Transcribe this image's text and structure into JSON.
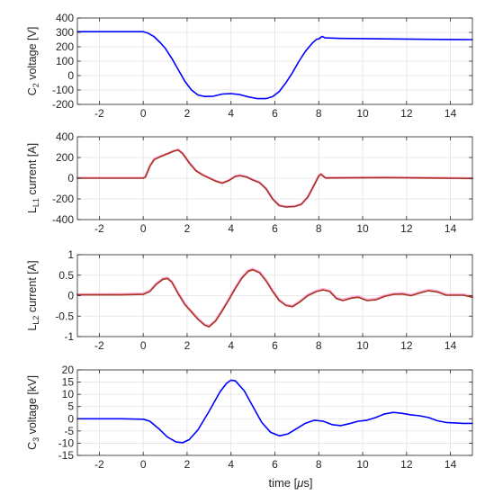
{
  "figure": {
    "xlabel_prefix": "time [",
    "xlabel_mu": "μ",
    "xlabel_suffix": "s]"
  },
  "chart_data": [
    {
      "type": "line",
      "ylabel": {
        "pre": "C",
        "sub": "2",
        "post": " voltage [V]"
      },
      "xlim": [
        -3,
        15
      ],
      "ylim": [
        -200,
        400
      ],
      "xticks": [
        -2,
        0,
        2,
        4,
        6,
        8,
        10,
        12,
        14
      ],
      "yticks": [
        -200,
        -100,
        0,
        100,
        200,
        300,
        400
      ],
      "grid": true,
      "series": [
        {
          "color": "#0000ff",
          "points": [
            [
              -3,
              305
            ],
            [
              -1.5,
              305
            ],
            [
              0,
              305
            ],
            [
              0.2,
              296
            ],
            [
              0.5,
              270
            ],
            [
              0.8,
              225
            ],
            [
              1,
              190
            ],
            [
              1.3,
              120
            ],
            [
              1.6,
              40
            ],
            [
              1.9,
              -40
            ],
            [
              2.2,
              -100
            ],
            [
              2.5,
              -135
            ],
            [
              2.8,
              -145
            ],
            [
              3.2,
              -143
            ],
            [
              3.6,
              -128
            ],
            [
              4,
              -125
            ],
            [
              4.4,
              -132
            ],
            [
              4.8,
              -148
            ],
            [
              5.2,
              -160
            ],
            [
              5.6,
              -160
            ],
            [
              5.9,
              -145
            ],
            [
              6.2,
              -110
            ],
            [
              6.5,
              -50
            ],
            [
              6.8,
              20
            ],
            [
              7.1,
              100
            ],
            [
              7.4,
              170
            ],
            [
              7.7,
              225
            ],
            [
              7.9,
              252
            ],
            [
              8,
              255
            ],
            [
              8.15,
              272
            ],
            [
              8.3,
              262
            ],
            [
              9,
              258
            ],
            [
              11,
              255
            ],
            [
              13,
              252
            ],
            [
              15,
              250
            ]
          ]
        }
      ]
    },
    {
      "type": "line",
      "ylabel": {
        "pre": "L",
        "sub": "L1",
        "post": " current [A]"
      },
      "xlim": [
        -3,
        15
      ],
      "ylim": [
        -400,
        400
      ],
      "xticks": [
        -2,
        0,
        2,
        4,
        6,
        8,
        10,
        12,
        14
      ],
      "yticks": [
        -400,
        -200,
        0,
        200,
        400
      ],
      "grid": true,
      "series": [
        {
          "color": "#ff55aa",
          "points": [
            [
              -3,
              4
            ],
            [
              -1,
              4
            ],
            [
              0,
              4
            ],
            [
              0.1,
              15
            ],
            [
              0.3,
              120
            ],
            [
              0.5,
              185
            ],
            [
              0.8,
              215
            ],
            [
              1.1,
              240
            ],
            [
              1.4,
              265
            ],
            [
              1.6,
              275
            ],
            [
              1.8,
              240
            ],
            [
              2.1,
              150
            ],
            [
              2.4,
              75
            ],
            [
              2.7,
              35
            ],
            [
              3,
              5
            ],
            [
              3.3,
              -25
            ],
            [
              3.6,
              -45
            ],
            [
              3.9,
              -20
            ],
            [
              4.2,
              20
            ],
            [
              4.4,
              28
            ],
            [
              4.7,
              15
            ],
            [
              5,
              -15
            ],
            [
              5.3,
              -40
            ],
            [
              5.6,
              -100
            ],
            [
              5.9,
              -200
            ],
            [
              6.2,
              -262
            ],
            [
              6.5,
              -275
            ],
            [
              6.9,
              -270
            ],
            [
              7.2,
              -250
            ],
            [
              7.5,
              -180
            ],
            [
              7.8,
              -60
            ],
            [
              8,
              25
            ],
            [
              8.1,
              42
            ],
            [
              8.3,
              5
            ],
            [
              9,
              6
            ],
            [
              11,
              8
            ],
            [
              13,
              5
            ],
            [
              15,
              0
            ]
          ]
        },
        {
          "color": "#a83222",
          "points": [
            [
              -3,
              0
            ],
            [
              -1,
              0
            ],
            [
              0,
              0
            ],
            [
              0.1,
              10
            ],
            [
              0.3,
              115
            ],
            [
              0.5,
              180
            ],
            [
              0.8,
              210
            ],
            [
              1.1,
              235
            ],
            [
              1.4,
              262
            ],
            [
              1.6,
              272
            ],
            [
              1.8,
              236
            ],
            [
              2.1,
              147
            ],
            [
              2.4,
              72
            ],
            [
              2.7,
              32
            ],
            [
              3,
              2
            ],
            [
              3.3,
              -28
            ],
            [
              3.6,
              -48
            ],
            [
              3.9,
              -23
            ],
            [
              4.2,
              17
            ],
            [
              4.4,
              25
            ],
            [
              4.7,
              12
            ],
            [
              5,
              -18
            ],
            [
              5.3,
              -43
            ],
            [
              5.6,
              -103
            ],
            [
              5.9,
              -203
            ],
            [
              6.2,
              -265
            ],
            [
              6.5,
              -278
            ],
            [
              6.9,
              -273
            ],
            [
              7.2,
              -253
            ],
            [
              7.5,
              -183
            ],
            [
              7.8,
              -63
            ],
            [
              8,
              22
            ],
            [
              8.1,
              38
            ],
            [
              8.3,
              2
            ],
            [
              9,
              3
            ],
            [
              11,
              5
            ],
            [
              13,
              2
            ],
            [
              15,
              -3
            ]
          ]
        }
      ]
    },
    {
      "type": "line",
      "ylabel": {
        "pre": "L",
        "sub": "L2",
        "post": " current [A]"
      },
      "xlim": [
        -3,
        15
      ],
      "ylim": [
        -1,
        1
      ],
      "xticks": [
        -2,
        0,
        2,
        4,
        6,
        8,
        10,
        12,
        14
      ],
      "yticks": [
        -1,
        -0.5,
        0,
        0.5,
        1
      ],
      "grid": true,
      "series": [
        {
          "color": "#ff55aa",
          "points": [
            [
              -3,
              0.03
            ],
            [
              -1,
              0.04
            ],
            [
              0,
              0.05
            ],
            [
              0.3,
              0.12
            ],
            [
              0.6,
              0.3
            ],
            [
              0.9,
              0.42
            ],
            [
              1.1,
              0.44
            ],
            [
              1.3,
              0.35
            ],
            [
              1.6,
              0.06
            ],
            [
              1.9,
              -0.2
            ],
            [
              2.2,
              -0.38
            ],
            [
              2.5,
              -0.56
            ],
            [
              2.8,
              -0.7
            ],
            [
              3,
              -0.74
            ],
            [
              3.3,
              -0.6
            ],
            [
              3.6,
              -0.35
            ],
            [
              3.9,
              -0.08
            ],
            [
              4.2,
              0.2
            ],
            [
              4.5,
              0.45
            ],
            [
              4.8,
              0.62
            ],
            [
              5,
              0.65
            ],
            [
              5.3,
              0.58
            ],
            [
              5.6,
              0.38
            ],
            [
              5.9,
              0.12
            ],
            [
              6.2,
              -0.1
            ],
            [
              6.5,
              -0.22
            ],
            [
              6.8,
              -0.25
            ],
            [
              7.1,
              -0.15
            ],
            [
              7.5,
              0.02
            ],
            [
              7.9,
              0.12
            ],
            [
              8.2,
              0.16
            ],
            [
              8.5,
              0.12
            ],
            [
              8.8,
              -0.05
            ],
            [
              9.1,
              -0.1
            ],
            [
              9.5,
              -0.04
            ],
            [
              9.8,
              -0.02
            ],
            [
              10.2,
              -0.1
            ],
            [
              10.6,
              -0.08
            ],
            [
              11,
              0
            ],
            [
              11.4,
              0.05
            ],
            [
              11.8,
              0.06
            ],
            [
              12.2,
              0.02
            ],
            [
              12.7,
              0.1
            ],
            [
              13,
              0.14
            ],
            [
              13.4,
              0.11
            ],
            [
              13.8,
              0.03
            ],
            [
              14.2,
              0.03
            ],
            [
              14.6,
              0.03
            ],
            [
              15,
              -0.02
            ]
          ]
        },
        {
          "color": "#a83222",
          "points": [
            [
              -3,
              0.02
            ],
            [
              -1,
              0.02
            ],
            [
              0,
              0.03
            ],
            [
              0.3,
              0.1
            ],
            [
              0.6,
              0.28
            ],
            [
              0.9,
              0.4
            ],
            [
              1.1,
              0.42
            ],
            [
              1.3,
              0.33
            ],
            [
              1.6,
              0.04
            ],
            [
              1.9,
              -0.22
            ],
            [
              2.2,
              -0.4
            ],
            [
              2.5,
              -0.58
            ],
            [
              2.8,
              -0.72
            ],
            [
              3,
              -0.76
            ],
            [
              3.3,
              -0.62
            ],
            [
              3.6,
              -0.37
            ],
            [
              3.9,
              -0.1
            ],
            [
              4.2,
              0.18
            ],
            [
              4.5,
              0.43
            ],
            [
              4.8,
              0.6
            ],
            [
              5,
              0.63
            ],
            [
              5.3,
              0.56
            ],
            [
              5.6,
              0.36
            ],
            [
              5.9,
              0.1
            ],
            [
              6.2,
              -0.12
            ],
            [
              6.5,
              -0.24
            ],
            [
              6.8,
              -0.27
            ],
            [
              7.1,
              -0.17
            ],
            [
              7.5,
              0
            ],
            [
              7.9,
              0.1
            ],
            [
              8.2,
              0.14
            ],
            [
              8.5,
              0.1
            ],
            [
              8.8,
              -0.07
            ],
            [
              9.1,
              -0.12
            ],
            [
              9.5,
              -0.06
            ],
            [
              9.8,
              -0.04
            ],
            [
              10.2,
              -0.12
            ],
            [
              10.6,
              -0.1
            ],
            [
              11,
              -0.02
            ],
            [
              11.4,
              0.03
            ],
            [
              11.8,
              0.04
            ],
            [
              12.2,
              0
            ],
            [
              12.7,
              0.08
            ],
            [
              13,
              0.12
            ],
            [
              13.4,
              0.09
            ],
            [
              13.8,
              0.01
            ],
            [
              14.2,
              0.01
            ],
            [
              14.6,
              0.01
            ],
            [
              15,
              -0.04
            ]
          ]
        }
      ]
    },
    {
      "type": "line",
      "ylabel": {
        "pre": "C",
        "sub": "3",
        "post": " voltage [kV]"
      },
      "xlim": [
        -3,
        15
      ],
      "ylim": [
        -15,
        20
      ],
      "xticks": [
        -2,
        0,
        2,
        4,
        6,
        8,
        10,
        12,
        14
      ],
      "yticks": [
        -15,
        -10,
        -5,
        0,
        5,
        10,
        15,
        20
      ],
      "grid": true,
      "series": [
        {
          "color": "#0000ff",
          "points": [
            [
              -3,
              0
            ],
            [
              -1,
              0
            ],
            [
              0,
              -0.2
            ],
            [
              0.3,
              -1
            ],
            [
              0.7,
              -4
            ],
            [
              1.1,
              -7.5
            ],
            [
              1.5,
              -9.5
            ],
            [
              1.8,
              -9.8
            ],
            [
              2.1,
              -8.5
            ],
            [
              2.5,
              -4.5
            ],
            [
              3,
              3
            ],
            [
              3.5,
              11
            ],
            [
              3.8,
              14.5
            ],
            [
              4,
              15.8
            ],
            [
              4.2,
              15.5
            ],
            [
              4.6,
              11.5
            ],
            [
              5,
              5
            ],
            [
              5.4,
              -1.5
            ],
            [
              5.8,
              -5.5
            ],
            [
              6.2,
              -7
            ],
            [
              6.6,
              -6.2
            ],
            [
              7,
              -4
            ],
            [
              7.4,
              -1.8
            ],
            [
              7.8,
              -0.6
            ],
            [
              8.2,
              -1
            ],
            [
              8.6,
              -2.4
            ],
            [
              9,
              -2.8
            ],
            [
              9.4,
              -2
            ],
            [
              9.8,
              -1
            ],
            [
              10.2,
              -0.6
            ],
            [
              10.6,
              0.5
            ],
            [
              11,
              2
            ],
            [
              11.4,
              2.6
            ],
            [
              11.8,
              2.2
            ],
            [
              12.2,
              1.6
            ],
            [
              12.6,
              1.2
            ],
            [
              13,
              0.5
            ],
            [
              13.4,
              -0.8
            ],
            [
              13.8,
              -1.5
            ],
            [
              14.2,
              -1.7
            ],
            [
              14.6,
              -1.9
            ],
            [
              15,
              -1.9
            ]
          ]
        }
      ]
    }
  ]
}
